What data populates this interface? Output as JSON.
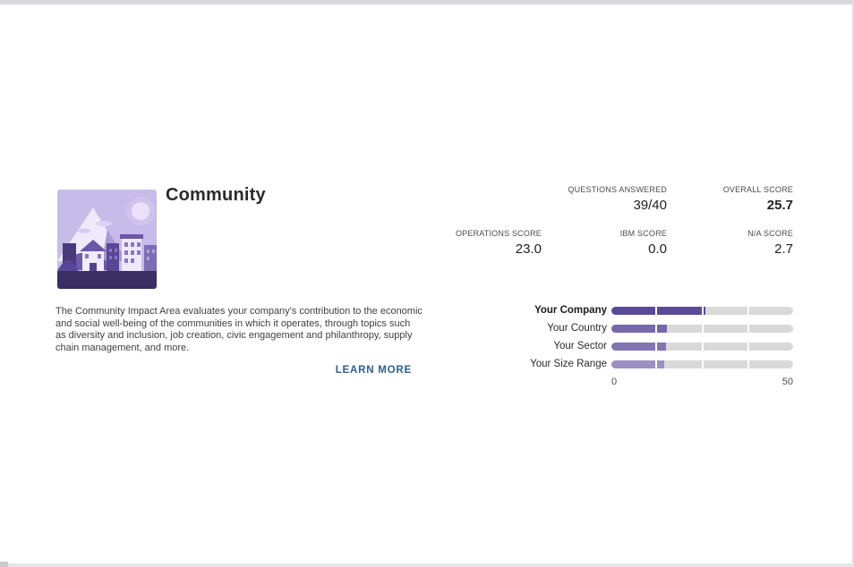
{
  "impact_area": {
    "title": "Community",
    "description": "The Community Impact Area evaluates your company's contribution to the economic and social well-being of the communities in which it operates, through topics such as diversity and inclusion, job creation, civic engagement and philanthropy, supply chain management, and more.",
    "learn_more_label": "LEARN MORE"
  },
  "stats": {
    "row1": [
      {
        "label": "QUESTIONS ANSWERED",
        "value": "39/40"
      },
      {
        "label": "OVERALL SCORE",
        "value": "25.7"
      }
    ],
    "row2": [
      {
        "label": "OPERATIONS SCORE",
        "value": "23.0"
      },
      {
        "label": "IBM SCORE",
        "value": "0.0"
      },
      {
        "label": "N/A SCORE",
        "value": "2.7"
      }
    ]
  },
  "chart_data": {
    "type": "bar",
    "orientation": "horizontal",
    "categories": [
      "Your Company",
      "Your Country",
      "Your Sector",
      "Your Size Range"
    ],
    "values": [
      25.7,
      15.3,
      15.0,
      14.5
    ],
    "xlim": [
      0,
      50
    ],
    "x_tick_labels": [
      "0",
      "50"
    ],
    "segments_per_track": 4,
    "bar_colors": [
      "#5b4a9a",
      "#7767ab",
      "#8375b2",
      "#9c90c3"
    ],
    "track_color": "#d9d9d9",
    "highlight_category": "Your Company",
    "legend": "none",
    "grid": false
  },
  "theme": {
    "link_color": "#2e6191",
    "accent_purple": "#5b4a9a",
    "frame_border": "#d7d7dc"
  }
}
